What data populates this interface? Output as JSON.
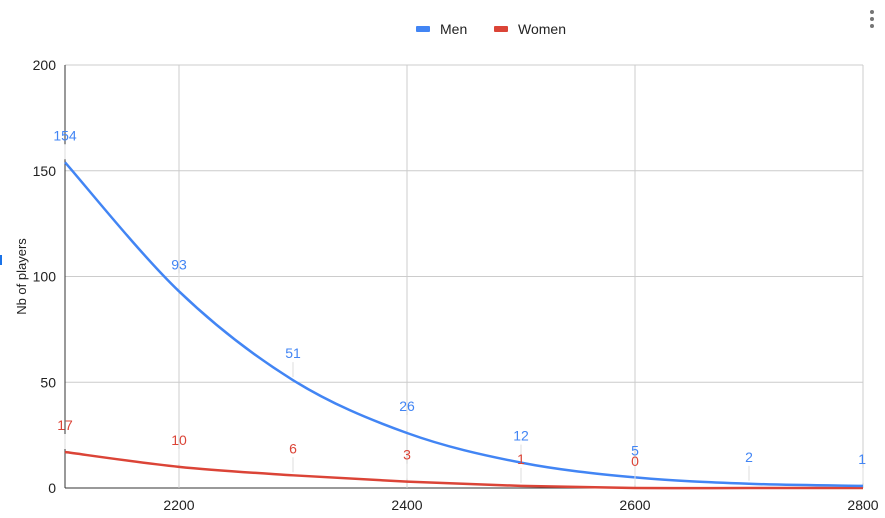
{
  "chart_data": {
    "type": "line",
    "title": "",
    "xlabel": "",
    "ylabel": "Nb of players",
    "xlim": [
      2100,
      2800
    ],
    "ylim": [
      0,
      200
    ],
    "x_ticks": [
      2200,
      2400,
      2600,
      2800
    ],
    "y_ticks": [
      0,
      50,
      100,
      150,
      200
    ],
    "grid": true,
    "legend_position": "top",
    "series": [
      {
        "name": "Men",
        "color": "#4285f4",
        "x": [
          2100,
          2200,
          2300,
          2400,
          2500,
          2600,
          2700,
          2800
        ],
        "values": [
          154,
          93,
          51,
          26,
          12,
          5,
          2,
          1
        ],
        "labels": [
          "154",
          "93",
          "51",
          "26",
          "12",
          "5",
          "2",
          "1"
        ]
      },
      {
        "name": "Women",
        "color": "#db4437",
        "x": [
          2100,
          2200,
          2300,
          2400,
          2500,
          2600,
          2700,
          2800
        ],
        "values": [
          17,
          10,
          6,
          3,
          1,
          0,
          0,
          0
        ],
        "labels": [
          "17",
          "10",
          "6",
          "3",
          "1",
          "0",
          "",
          ""
        ]
      }
    ]
  },
  "colors": {
    "axis": "#333333",
    "grid": "#cccccc",
    "text": "#222222",
    "menu_icon": "#757575"
  }
}
